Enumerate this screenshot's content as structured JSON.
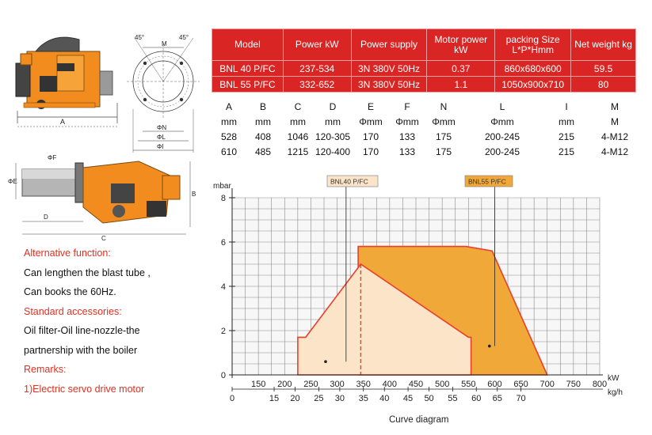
{
  "spec_table": {
    "headers": [
      "Model",
      "Power kW",
      "Power supply",
      "Motor power kW",
      "packing Size L*P*Hmm",
      "Net weight kg"
    ],
    "rows": [
      [
        "BNL 40 P/FC",
        "237-534",
        "3N  380V  50Hz",
        "0.37",
        "860x680x600",
        "59.5"
      ],
      [
        "BNL 55 P/FC",
        "332-652",
        "3N  380V  50Hz",
        "1.1",
        "1050x900x710",
        "80"
      ]
    ]
  },
  "dimension_table": {
    "letters": [
      "A",
      "B",
      "C",
      "D",
      "E",
      "F",
      "N",
      "L",
      "I",
      "M"
    ],
    "units": [
      "mm",
      "mm",
      "mm",
      "mm",
      "Φmm",
      "Φmm",
      "Φmm",
      "Φmm",
      "mm",
      "M"
    ],
    "rows": [
      [
        "528",
        "408",
        "1046",
        "120-305",
        "170",
        "133",
        "175",
        "200-245",
        "215",
        "4-M12"
      ],
      [
        "610",
        "485",
        "1215",
        "120-400",
        "170",
        "133",
        "175",
        "200-245",
        "215",
        "4-M12"
      ]
    ]
  },
  "drawing_labels": {
    "angle_left": "45°",
    "angle_right": "45°",
    "flange_m": "M",
    "flange_n": "ΦN",
    "flange_l": "ΦL",
    "flange_i": "ΦI",
    "top_a": "A",
    "side_f": "ΦF",
    "side_e": "ΦE",
    "side_d": "D",
    "side_c": "C",
    "side_b": "B"
  },
  "notes": {
    "alt_title": "Alternative function:",
    "alt_line1": "Can lengthen the blast tube ,",
    "alt_line2": "Can books the 60Hz.",
    "acc_title": "Standard accessories:",
    "acc_line1": "Oil filter-Oil line-nozzle-the",
    "acc_line2": "partnership with the boiler",
    "rem_title": "Remarks:",
    "rem_line1": "1)Electric servo drive motor"
  },
  "colors": {
    "red": "#d92624",
    "orange_fill": "#f0a838",
    "light_fill": "#fbe4c8",
    "burner_orange": "#f28c1e"
  },
  "chart_data": {
    "type": "area",
    "title": "Curve diagram",
    "ylabel": "mbar",
    "xlabel": "kW",
    "x2label": "kg/h",
    "ylim": [
      0,
      8
    ],
    "xlim": [
      100,
      800
    ],
    "y_ticks": [
      0,
      2,
      4,
      6,
      8
    ],
    "x_ticks": [
      150,
      200,
      250,
      300,
      350,
      400,
      450,
      500,
      550,
      600,
      650,
      700,
      750,
      800
    ],
    "x2_ticks": [
      0,
      15,
      20,
      25,
      30,
      35,
      40,
      45,
      50,
      55,
      60,
      65,
      70
    ],
    "x2_tick_positions_kw": [
      100,
      180,
      220,
      265,
      305,
      350,
      390,
      435,
      475,
      520,
      565,
      605,
      650
    ],
    "grid": true,
    "series": [
      {
        "name": "BNL55 P/FC",
        "points": [
          [
            340,
            0
          ],
          [
            340,
            5.8
          ],
          [
            545,
            5.8
          ],
          [
            595,
            5.6
          ],
          [
            700,
            0
          ]
        ]
      },
      {
        "name": "BNL40 P/FC",
        "points": [
          [
            225,
            0
          ],
          [
            225,
            1.7
          ],
          [
            240,
            1.7
          ],
          [
            345,
            5.0
          ],
          [
            550,
            1.7
          ],
          [
            555,
            1.7
          ],
          [
            555,
            0
          ]
        ]
      }
    ]
  }
}
